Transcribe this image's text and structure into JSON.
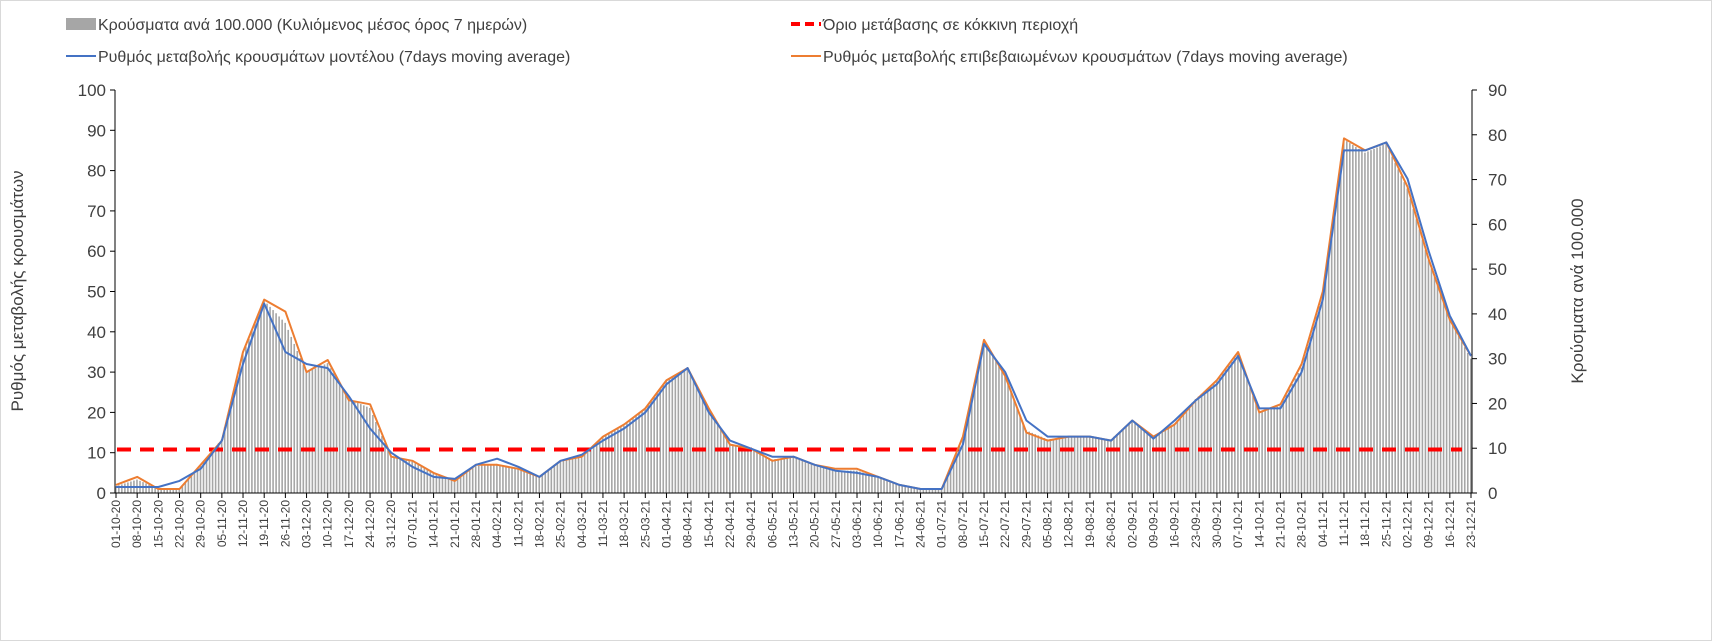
{
  "chart_data": {
    "type": "bar+line",
    "legend": {
      "bars": "Κρούσματα ανά 100.000 (Κυλιόμενος μέσος όρος 7 ημερών)",
      "threshold": "Όριο μετάβασης σε κόκκινη περιοχή",
      "model": "Ρυθμός μεταβολής κρουσμάτων μοντέλου (7days moving average)",
      "confirmed": "Ρυθμός μεταβολής επιβεβαιωμένων κρουσμάτων (7days moving average)"
    },
    "ylabel_left": "Ρυθμός μεταβολής κρουσμάτων",
    "ylabel_right": "Κρούσματα ανά 100.000",
    "ylim_left": [
      0,
      100
    ],
    "ylim_right": [
      0,
      90
    ],
    "yticks_left": [
      "0",
      "10",
      "20",
      "30",
      "40",
      "50",
      "60",
      "70",
      "80",
      "90",
      "100"
    ],
    "yticks_right": [
      "0",
      "10",
      "20",
      "30",
      "40",
      "50",
      "60",
      "70",
      "80",
      "90"
    ],
    "threshold_left": 10.8,
    "colors": {
      "bars": "#a6a6a6",
      "model": "#4472c4",
      "confirmed": "#ed7d31",
      "threshold": "#ff0000"
    },
    "categories": [
      "01-10-20",
      "08-10-20",
      "15-10-20",
      "22-10-20",
      "29-10-20",
      "05-11-20",
      "12-11-20",
      "19-11-20",
      "26-11-20",
      "03-12-20",
      "10-12-20",
      "17-12-20",
      "24-12-20",
      "31-12-20",
      "07-01-21",
      "14-01-21",
      "21-01-21",
      "28-01-21",
      "04-02-21",
      "11-02-21",
      "18-02-21",
      "25-02-21",
      "04-03-21",
      "11-03-21",
      "18-03-21",
      "25-03-21",
      "01-04-21",
      "08-04-21",
      "15-04-21",
      "22-04-21",
      "29-04-21",
      "06-05-21",
      "13-05-21",
      "20-05-21",
      "27-05-21",
      "03-06-21",
      "10-06-21",
      "17-06-21",
      "24-06-21",
      "01-07-21",
      "08-07-21",
      "15-07-21",
      "22-07-21",
      "29-07-21",
      "05-08-21",
      "12-08-21",
      "19-08-21",
      "26-08-21",
      "02-09-21",
      "09-09-21",
      "16-09-21",
      "23-09-21",
      "30-09-21",
      "07-10-21",
      "14-10-21",
      "21-10-21",
      "28-10-21",
      "04-11-21",
      "11-11-21",
      "18-11-21",
      "25-11-21",
      "02-12-21",
      "09-12-21",
      "16-12-21",
      "23-12-21"
    ],
    "series": [
      {
        "name": "model",
        "axis": "left",
        "values": [
          1.5,
          1.5,
          1.5,
          3,
          6,
          13,
          32,
          47,
          35,
          32,
          31,
          24,
          16,
          10,
          6.5,
          4,
          3.5,
          7,
          8.5,
          6.5,
          4,
          8,
          9.5,
          13,
          16,
          20,
          27,
          31,
          20,
          13,
          11,
          9,
          9,
          7,
          5.5,
          5,
          4,
          2,
          1,
          1,
          12,
          37,
          30,
          18,
          14,
          14,
          14,
          13,
          18,
          13.5,
          18,
          23,
          27,
          34,
          21,
          21,
          30,
          48,
          85,
          85,
          87,
          78,
          60,
          44,
          34
        ]
      },
      {
        "name": "confirmed",
        "axis": "left",
        "values": [
          2,
          4,
          1,
          1,
          7,
          13,
          35,
          48,
          45,
          30,
          33,
          23,
          22,
          9,
          8,
          5,
          3,
          7,
          7,
          6,
          4,
          8,
          9,
          14,
          17,
          21,
          28,
          31,
          21,
          12,
          11,
          8,
          9,
          7,
          6,
          6,
          4,
          2,
          1,
          1,
          14,
          38,
          29,
          15,
          13,
          14,
          14,
          13,
          18,
          14,
          17,
          23,
          28,
          35,
          20,
          22,
          32,
          50,
          88,
          85,
          87,
          76,
          58,
          43,
          34
        ]
      },
      {
        "name": "bars",
        "axis": "right",
        "values": [
          1.5,
          3,
          1,
          1,
          6,
          12,
          31,
          43,
          38,
          27,
          29,
          21,
          19,
          8,
          7,
          4.5,
          3,
          6,
          6.5,
          5.5,
          3.5,
          7,
          8.5,
          12.5,
          15,
          19,
          25,
          28,
          19,
          11,
          10,
          7.5,
          8,
          6.5,
          5,
          5,
          3.5,
          2,
          1,
          1,
          12,
          34,
          26,
          14,
          12,
          12.5,
          12.5,
          12,
          16,
          12.5,
          15.5,
          21,
          25,
          31,
          18,
          19.5,
          28,
          44,
          79,
          76,
          78,
          68,
          52,
          39,
          30
        ]
      }
    ]
  }
}
